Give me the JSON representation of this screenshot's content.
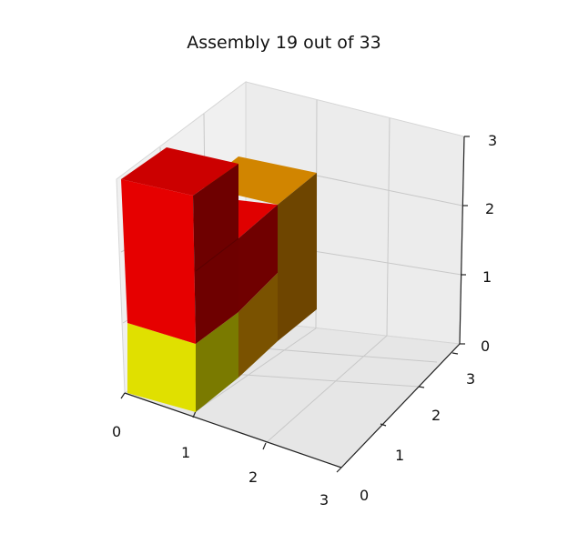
{
  "title": "Assembly 19 out of 33",
  "axes": {
    "x": {
      "ticks": [
        "0",
        "1",
        "2",
        "3"
      ]
    },
    "y": {
      "ticks": [
        "0",
        "1",
        "2",
        "3"
      ]
    },
    "z": {
      "ticks": [
        "0",
        "1",
        "2",
        "3"
      ]
    }
  },
  "colors": {
    "red": "#e00000",
    "orange": "#d98a00",
    "yellow": "#e6e600",
    "pane": "#f2f2f2",
    "grid": "#c8c8c8"
  }
}
